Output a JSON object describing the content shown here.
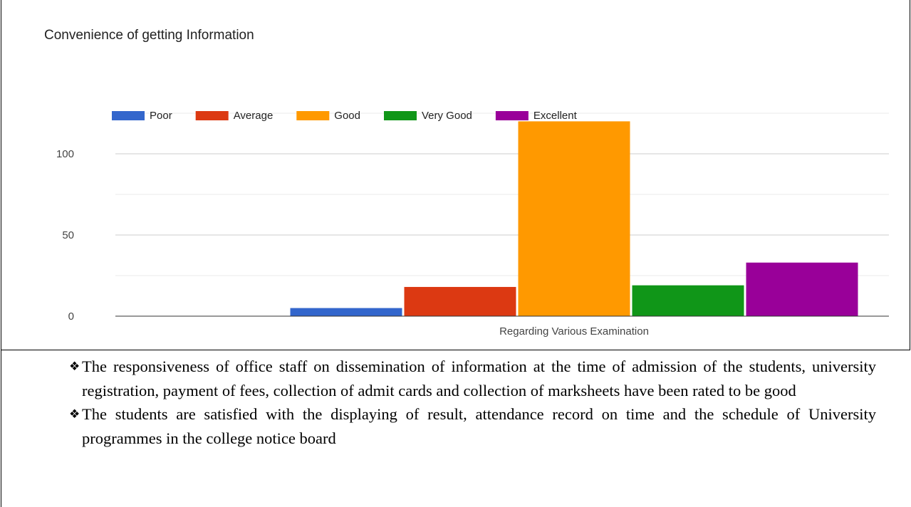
{
  "chart_data": {
    "type": "bar",
    "title": "Convenience of getting Information",
    "categories": [
      "Regarding Various Examination"
    ],
    "series": [
      {
        "name": "Poor",
        "color": "#3366cc",
        "values": [
          5
        ]
      },
      {
        "name": "Average",
        "color": "#dc3912",
        "values": [
          18
        ]
      },
      {
        "name": "Good",
        "color": "#ff9900",
        "values": [
          120
        ]
      },
      {
        "name": "Very Good",
        "color": "#109618",
        "values": [
          19
        ]
      },
      {
        "name": "Excellent",
        "color": "#990099",
        "values": [
          33
        ]
      }
    ],
    "ylim": [
      0,
      125
    ],
    "yticks": [
      0,
      50,
      100
    ],
    "minor_yticks": [
      25,
      75,
      125
    ],
    "grid": true,
    "legend": "top"
  },
  "bullets": [
    "The responsiveness of office staff on dissemination of information at the time of admission of the students, university registration, payment of fees, collection of admit cards and collection of marksheets have been rated to be good",
    "The students are satisfied with the displaying of result, attendance record on time and the schedule of University  programmes in the college notice board"
  ]
}
